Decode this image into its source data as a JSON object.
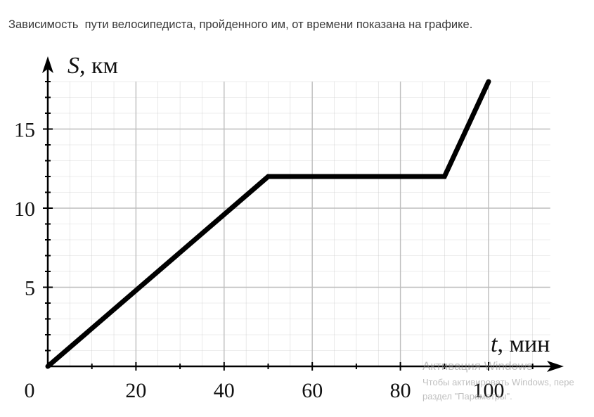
{
  "question_text": "Зависимость  пути велосипедиста, пройденного им, от времени показана на графике.",
  "chart_data": {
    "type": "line",
    "x": [
      0,
      50,
      90,
      100
    ],
    "series": [
      {
        "values": [
          0,
          12,
          12,
          18
        ]
      }
    ],
    "x_axis_label": {
      "variable": "t",
      "unit": ", мин"
    },
    "y_axis_label": {
      "variable": "S",
      "unit": ", км"
    },
    "x_tick_labels": [
      "20",
      "40",
      "60",
      "80",
      "100"
    ],
    "y_tick_labels": [
      "5",
      "10",
      "15"
    ],
    "origin_label": "0",
    "xlim": [
      0,
      114
    ],
    "ylim": [
      0,
      18
    ],
    "grid": true,
    "line_color": "#000000",
    "grid_color": "#bdbdbd"
  },
  "watermark": {
    "title": "Активация Windows",
    "line1": "Чтобы активировать Windows, пере",
    "line2": "раздел \"Параметры\"."
  }
}
